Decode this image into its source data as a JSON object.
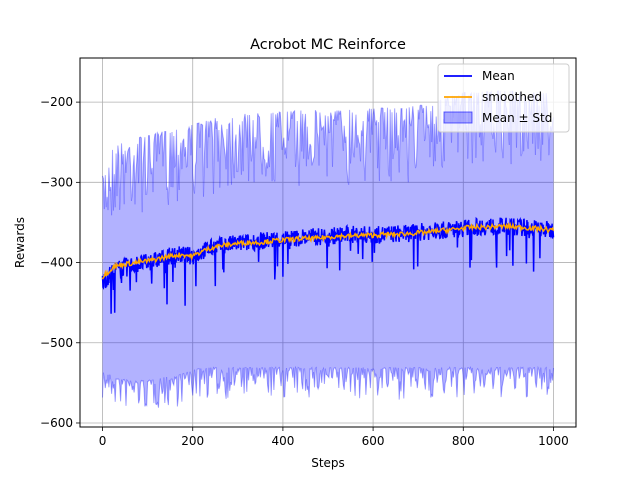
{
  "chart_data": {
    "type": "line",
    "title": "Acrobot MC Reinforce",
    "xlabel": "Steps",
    "ylabel": "Rewards",
    "xlim": [
      -50,
      1050
    ],
    "ylim": [
      -605,
      -145
    ],
    "xticks": [
      0,
      200,
      400,
      600,
      800,
      1000
    ],
    "yticks": [
      -600,
      -500,
      -400,
      -300,
      -200
    ],
    "xtick_labels": [
      "0",
      "200",
      "400",
      "600",
      "800",
      "1000"
    ],
    "ytick_labels": [
      "−600",
      "−500",
      "−400",
      "−300",
      "−200"
    ],
    "grid": true,
    "legend_position": "top-right",
    "legend": [
      {
        "label": "Mean",
        "kind": "line",
        "color": "#0000ff"
      },
      {
        "label": "smoothed",
        "kind": "line",
        "color": "#ffa500"
      },
      {
        "label": "Mean ± Std",
        "kind": "band",
        "color": "#0000ff"
      }
    ],
    "colors": {
      "mean": "#0000ff",
      "smoothed": "#ffa500",
      "band": "#0000ff"
    },
    "series": [
      {
        "name": "Mean",
        "x": [
          0,
          25,
          50,
          75,
          100,
          125,
          150,
          175,
          200,
          225,
          250,
          275,
          300,
          325,
          350,
          375,
          400,
          425,
          450,
          475,
          500,
          525,
          550,
          575,
          600,
          625,
          650,
          675,
          700,
          725,
          750,
          775,
          800,
          825,
          850,
          875,
          900,
          925,
          950,
          975,
          1000
        ],
        "y": [
          -425,
          -410,
          -405,
          -402,
          -400,
          -396,
          -392,
          -390,
          -392,
          -385,
          -380,
          -378,
          -376,
          -375,
          -373,
          -372,
          -370,
          -370,
          -368,
          -368,
          -367,
          -366,
          -365,
          -365,
          -366,
          -365,
          -364,
          -364,
          -362,
          -361,
          -360,
          -359,
          -357,
          -356,
          -355,
          -355,
          -355,
          -356,
          -357,
          -358,
          -360
        ]
      },
      {
        "name": "smoothed",
        "x": [
          0,
          25,
          50,
          75,
          100,
          125,
          150,
          175,
          200,
          225,
          250,
          275,
          300,
          325,
          350,
          375,
          400,
          425,
          450,
          475,
          500,
          525,
          550,
          575,
          600,
          625,
          650,
          675,
          700,
          725,
          750,
          775,
          800,
          825,
          850,
          875,
          900,
          925,
          950,
          975,
          1000
        ],
        "y": [
          -418,
          -405,
          -402,
          -400,
          -398,
          -395,
          -392,
          -390,
          -392,
          -385,
          -380,
          -378,
          -376,
          -375,
          -375,
          -373,
          -372,
          -371,
          -370,
          -370,
          -368,
          -367,
          -367,
          -366,
          -366,
          -365,
          -365,
          -364,
          -363,
          -362,
          -360,
          -359,
          -357,
          -356,
          -356,
          -355,
          -355,
          -356,
          -357,
          -358,
          -360
        ]
      },
      {
        "name": "Mean ± Std",
        "x": [
          0,
          25,
          50,
          75,
          100,
          125,
          150,
          175,
          200,
          225,
          250,
          275,
          300,
          325,
          350,
          375,
          400,
          425,
          450,
          475,
          500,
          525,
          550,
          575,
          600,
          625,
          650,
          675,
          700,
          725,
          750,
          775,
          800,
          825,
          850,
          875,
          900,
          925,
          950,
          975,
          1000
        ],
        "upper": [
          -300,
          -262,
          -258,
          -252,
          -250,
          -246,
          -242,
          -238,
          -236,
          -232,
          -228,
          -226,
          -224,
          -222,
          -222,
          -221,
          -220,
          -219,
          -218,
          -218,
          -218,
          -218,
          -217,
          -216,
          -216,
          -215,
          -215,
          -214,
          -212,
          -210,
          -205,
          -200,
          -196,
          -195,
          -195,
          -194,
          -194,
          -195,
          -195,
          -196,
          -197
        ],
        "lower": [
          -542,
          -548,
          -552,
          -553,
          -553,
          -550,
          -548,
          -545,
          -540,
          -537,
          -537,
          -537,
          -537,
          -537,
          -537,
          -537,
          -537,
          -537,
          -537,
          -537,
          -537,
          -537,
          -537,
          -537,
          -537,
          -537,
          -537,
          -537,
          -537,
          -537,
          -537,
          -537,
          -537,
          -537,
          -537,
          -537,
          -537,
          -537,
          -537,
          -537,
          -537
        ]
      }
    ]
  }
}
